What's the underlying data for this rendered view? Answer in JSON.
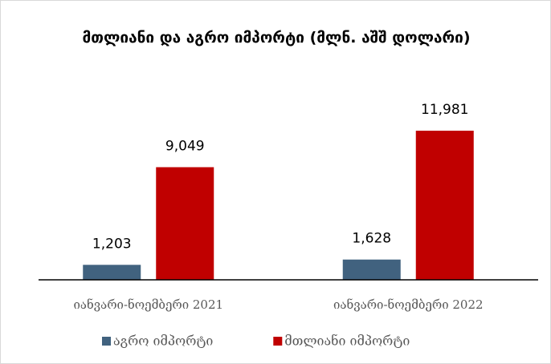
{
  "chart_data": {
    "type": "bar",
    "title": "მთლიანი და აგრო იმპორტი (მლნ. აშშ დოლარი)",
    "categories": [
      "იანვარი-ნოემბერი 2021",
      "იანვარი-ნოემბერი 2022"
    ],
    "series": [
      {
        "name": "აგრო იმპორტი",
        "color": "#41627f",
        "values": [
          1203,
          1628
        ],
        "value_labels": [
          "1,203",
          "1,628"
        ]
      },
      {
        "name": "მთლიანი იმპორტი",
        "color": "#c00000",
        "values": [
          9049,
          11981
        ],
        "value_labels": [
          "9,049",
          "11,981"
        ]
      }
    ],
    "legend": "bottom"
  }
}
